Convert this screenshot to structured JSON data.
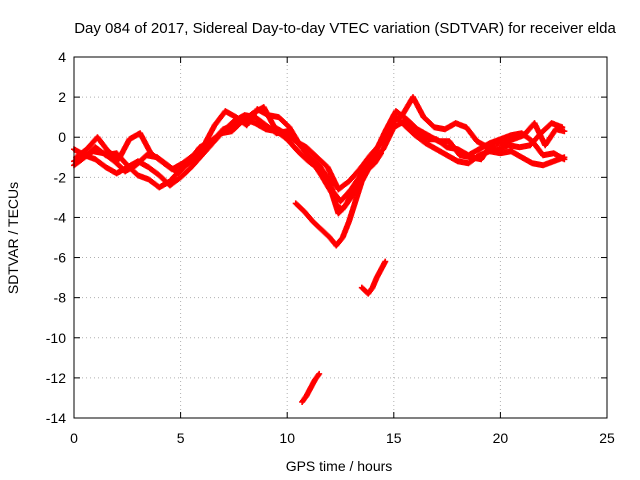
{
  "chart_data": {
    "type": "scatter",
    "title": "Day 084 of 2017, Sidereal Day-to-day VTEC variation (SDTVAR) for receiver elda",
    "xlabel": "GPS time / hours",
    "ylabel": "SDTVAR / TECUs",
    "xlim": [
      0,
      25
    ],
    "ylim": [
      -14,
      4
    ],
    "x_ticks": [
      0,
      5,
      10,
      15,
      20,
      25
    ],
    "y_ticks": [
      -14,
      -12,
      -10,
      -8,
      -6,
      -4,
      -2,
      0,
      2,
      4
    ],
    "grid": true,
    "marker": "+",
    "color": "#ff0000",
    "series": [
      {
        "name": "arc-1",
        "points": [
          [
            0.0,
            -0.6
          ],
          [
            0.5,
            -0.9
          ],
          [
            1.0,
            -1.1
          ],
          [
            1.5,
            -1.5
          ],
          [
            2.0,
            -1.8
          ],
          [
            2.5,
            -1.5
          ],
          [
            3.0,
            -1.2
          ],
          [
            3.5,
            -1.5
          ],
          [
            4.0,
            -1.9
          ],
          [
            4.5,
            -2.4
          ],
          [
            5.0,
            -2.0
          ],
          [
            5.5,
            -1.5
          ],
          [
            6.0,
            -0.9
          ],
          [
            6.5,
            -0.3
          ],
          [
            7.0,
            0.3
          ],
          [
            7.5,
            0.8
          ],
          [
            8.0,
            1.1
          ],
          [
            8.5,
            1.0
          ],
          [
            9.0,
            0.6
          ],
          [
            9.5,
            0.2
          ],
          [
            10.0,
            0.3
          ],
          [
            10.5,
            -0.3
          ],
          [
            11.0,
            -0.9
          ],
          [
            11.5,
            -1.4
          ],
          [
            12.0,
            -2.2
          ],
          [
            12.3,
            -3.4
          ],
          [
            12.6,
            -3.6
          ],
          [
            13.0,
            -3.0
          ],
          [
            13.5,
            -2.0
          ],
          [
            14.0,
            -1.2
          ],
          [
            14.5,
            -0.6
          ],
          [
            15.0,
            0.5
          ],
          [
            15.5,
            0.8
          ],
          [
            16.0,
            0.2
          ],
          [
            16.5,
            -0.1
          ],
          [
            17.0,
            -0.1
          ],
          [
            17.5,
            -0.5
          ],
          [
            18.0,
            -0.6
          ],
          [
            18.5,
            -0.9
          ],
          [
            19.0,
            -0.6
          ],
          [
            19.5,
            -0.3
          ],
          [
            20.0,
            -0.1
          ],
          [
            20.5,
            0.1
          ],
          [
            21.0,
            0.2
          ],
          [
            21.5,
            -0.2
          ],
          [
            22.0,
            -0.9
          ],
          [
            22.5,
            -0.8
          ],
          [
            23.0,
            -1.1
          ]
        ]
      },
      {
        "name": "arc-2",
        "points": [
          [
            0.0,
            -1.4
          ],
          [
            0.5,
            -1.0
          ],
          [
            1.0,
            -0.5
          ],
          [
            1.5,
            -0.9
          ],
          [
            2.0,
            -0.8
          ],
          [
            2.5,
            -1.4
          ],
          [
            3.0,
            -1.9
          ],
          [
            3.5,
            -2.1
          ],
          [
            4.0,
            -2.5
          ],
          [
            4.5,
            -2.2
          ],
          [
            5.0,
            -1.6
          ],
          [
            5.5,
            -1.2
          ],
          [
            6.0,
            -0.6
          ],
          [
            6.5,
            -0.2
          ],
          [
            7.0,
            0.4
          ],
          [
            7.5,
            0.6
          ],
          [
            8.0,
            0.9
          ],
          [
            8.5,
            0.7
          ],
          [
            9.0,
            0.4
          ],
          [
            9.5,
            0.3
          ],
          [
            10.0,
            -0.1
          ],
          [
            10.5,
            -0.7
          ],
          [
            11.0,
            -1.2
          ],
          [
            11.5,
            -1.6
          ],
          [
            12.0,
            -2.5
          ],
          [
            12.5,
            -3.2
          ],
          [
            13.0,
            -2.6
          ],
          [
            13.5,
            -1.8
          ],
          [
            14.0,
            -1.0
          ],
          [
            14.5,
            0.0
          ],
          [
            15.0,
            1.1
          ],
          [
            15.5,
            0.6
          ],
          [
            16.0,
            0.1
          ],
          [
            16.5,
            -0.3
          ],
          [
            17.0,
            -0.6
          ],
          [
            17.5,
            -0.9
          ],
          [
            18.0,
            -1.2
          ],
          [
            18.5,
            -1.3
          ],
          [
            19.0,
            -0.9
          ],
          [
            19.5,
            -0.7
          ],
          [
            20.0,
            -0.8
          ],
          [
            20.5,
            -0.7
          ],
          [
            21.0,
            -1.0
          ],
          [
            21.5,
            -1.3
          ],
          [
            22.0,
            -1.4
          ],
          [
            22.5,
            -1.2
          ],
          [
            23.0,
            -1.0
          ]
        ]
      },
      {
        "name": "arc-3",
        "points": [
          [
            0.1,
            -1.0
          ],
          [
            0.6,
            -0.6
          ],
          [
            1.1,
            0.0
          ],
          [
            1.6,
            -0.7
          ],
          [
            2.1,
            -1.1
          ],
          [
            2.6,
            -0.1
          ],
          [
            3.1,
            0.2
          ],
          [
            3.6,
            -0.8
          ],
          [
            4.1,
            -1.2
          ],
          [
            4.6,
            -1.6
          ],
          [
            5.1,
            -1.3
          ],
          [
            5.6,
            -0.9
          ],
          [
            6.1,
            -0.4
          ],
          [
            6.6,
            0.6
          ],
          [
            7.1,
            1.3
          ],
          [
            7.6,
            1.0
          ],
          [
            8.1,
            0.6
          ],
          [
            8.6,
            1.4
          ],
          [
            9.1,
            1.1
          ],
          [
            9.6,
            1.0
          ],
          [
            10.1,
            0.5
          ],
          [
            10.6,
            -0.4
          ],
          [
            11.1,
            -1.1
          ],
          [
            11.6,
            -1.9
          ],
          [
            12.1,
            -2.8
          ],
          [
            12.4,
            -3.8
          ],
          [
            12.8,
            -3.3
          ],
          [
            13.2,
            -2.4
          ],
          [
            13.7,
            -1.4
          ],
          [
            14.2,
            -0.6
          ],
          [
            14.6,
            0.3
          ],
          [
            15.1,
            1.3
          ],
          [
            15.6,
            0.9
          ],
          [
            16.1,
            0.4
          ],
          [
            16.6,
            0.1
          ],
          [
            17.1,
            -0.2
          ],
          [
            17.6,
            -0.2
          ],
          [
            18.1,
            -0.9
          ],
          [
            18.6,
            -1.0
          ],
          [
            19.1,
            -1.1
          ],
          [
            19.6,
            -0.3
          ],
          [
            20.1,
            -0.3
          ],
          [
            20.6,
            -0.1
          ],
          [
            21.1,
            0.1
          ],
          [
            21.6,
            0.7
          ],
          [
            22.1,
            -0.4
          ],
          [
            22.6,
            0.4
          ],
          [
            23.0,
            0.3
          ]
        ]
      },
      {
        "name": "arc-4",
        "points": [
          [
            0.0,
            -1.2
          ],
          [
            0.4,
            -1.0
          ],
          [
            0.9,
            -0.7
          ],
          [
            1.4,
            -0.8
          ],
          [
            1.9,
            -1.2
          ],
          [
            2.4,
            -1.7
          ],
          [
            2.9,
            -1.4
          ],
          [
            3.4,
            -0.9
          ],
          [
            3.9,
            -1.0
          ],
          [
            4.4,
            -1.4
          ],
          [
            4.9,
            -1.8
          ],
          [
            5.4,
            -1.2
          ],
          [
            5.9,
            -0.5
          ],
          [
            6.4,
            -0.2
          ],
          [
            6.9,
            0.2
          ],
          [
            7.4,
            0.3
          ],
          [
            7.9,
            0.8
          ],
          [
            8.4,
            1.2
          ],
          [
            8.9,
            1.5
          ],
          [
            9.4,
            0.5
          ],
          [
            9.9,
            0.2
          ],
          [
            10.4,
            -0.2
          ],
          [
            10.9,
            -0.5
          ],
          [
            11.4,
            -1.0
          ],
          [
            11.9,
            -1.5
          ],
          [
            12.4,
            -2.6
          ],
          [
            12.9,
            -2.2
          ],
          [
            13.4,
            -1.6
          ],
          [
            13.9,
            -0.9
          ],
          [
            14.4,
            -0.3
          ],
          [
            14.9,
            0.7
          ],
          [
            15.4,
            1.1
          ],
          [
            15.9,
            2.0
          ],
          [
            16.4,
            1.0
          ],
          [
            16.9,
            0.5
          ],
          [
            17.4,
            0.4
          ],
          [
            17.9,
            0.7
          ],
          [
            18.4,
            0.5
          ],
          [
            18.9,
            -0.2
          ],
          [
            19.4,
            -0.5
          ],
          [
            19.9,
            -0.6
          ],
          [
            20.4,
            -0.4
          ],
          [
            20.9,
            -0.5
          ],
          [
            21.4,
            -0.4
          ],
          [
            21.9,
            0.2
          ],
          [
            22.4,
            0.7
          ],
          [
            22.9,
            0.5
          ]
        ]
      },
      {
        "name": "arc-5",
        "points": [
          [
            10.4,
            -3.3
          ],
          [
            10.8,
            -3.7
          ],
          [
            11.2,
            -4.2
          ],
          [
            11.6,
            -4.6
          ],
          [
            12.0,
            -5.0
          ],
          [
            12.3,
            -5.4
          ],
          [
            12.6,
            -5.0
          ],
          [
            12.9,
            -4.2
          ],
          [
            13.2,
            -3.2
          ],
          [
            13.5,
            -2.2
          ],
          [
            13.8,
            -1.6
          ],
          [
            14.1,
            -1.3
          ],
          [
            14.4,
            -0.8
          ]
        ]
      },
      {
        "name": "arc-6",
        "points": [
          [
            13.5,
            -7.5
          ],
          [
            13.8,
            -7.8
          ],
          [
            14.0,
            -7.5
          ],
          [
            14.2,
            -7.0
          ],
          [
            14.4,
            -6.6
          ],
          [
            14.6,
            -6.2
          ]
        ]
      },
      {
        "name": "arc-7",
        "points": [
          [
            10.7,
            -13.2
          ],
          [
            10.9,
            -12.9
          ],
          [
            11.1,
            -12.5
          ],
          [
            11.3,
            -12.1
          ],
          [
            11.5,
            -11.8
          ]
        ]
      }
    ]
  }
}
